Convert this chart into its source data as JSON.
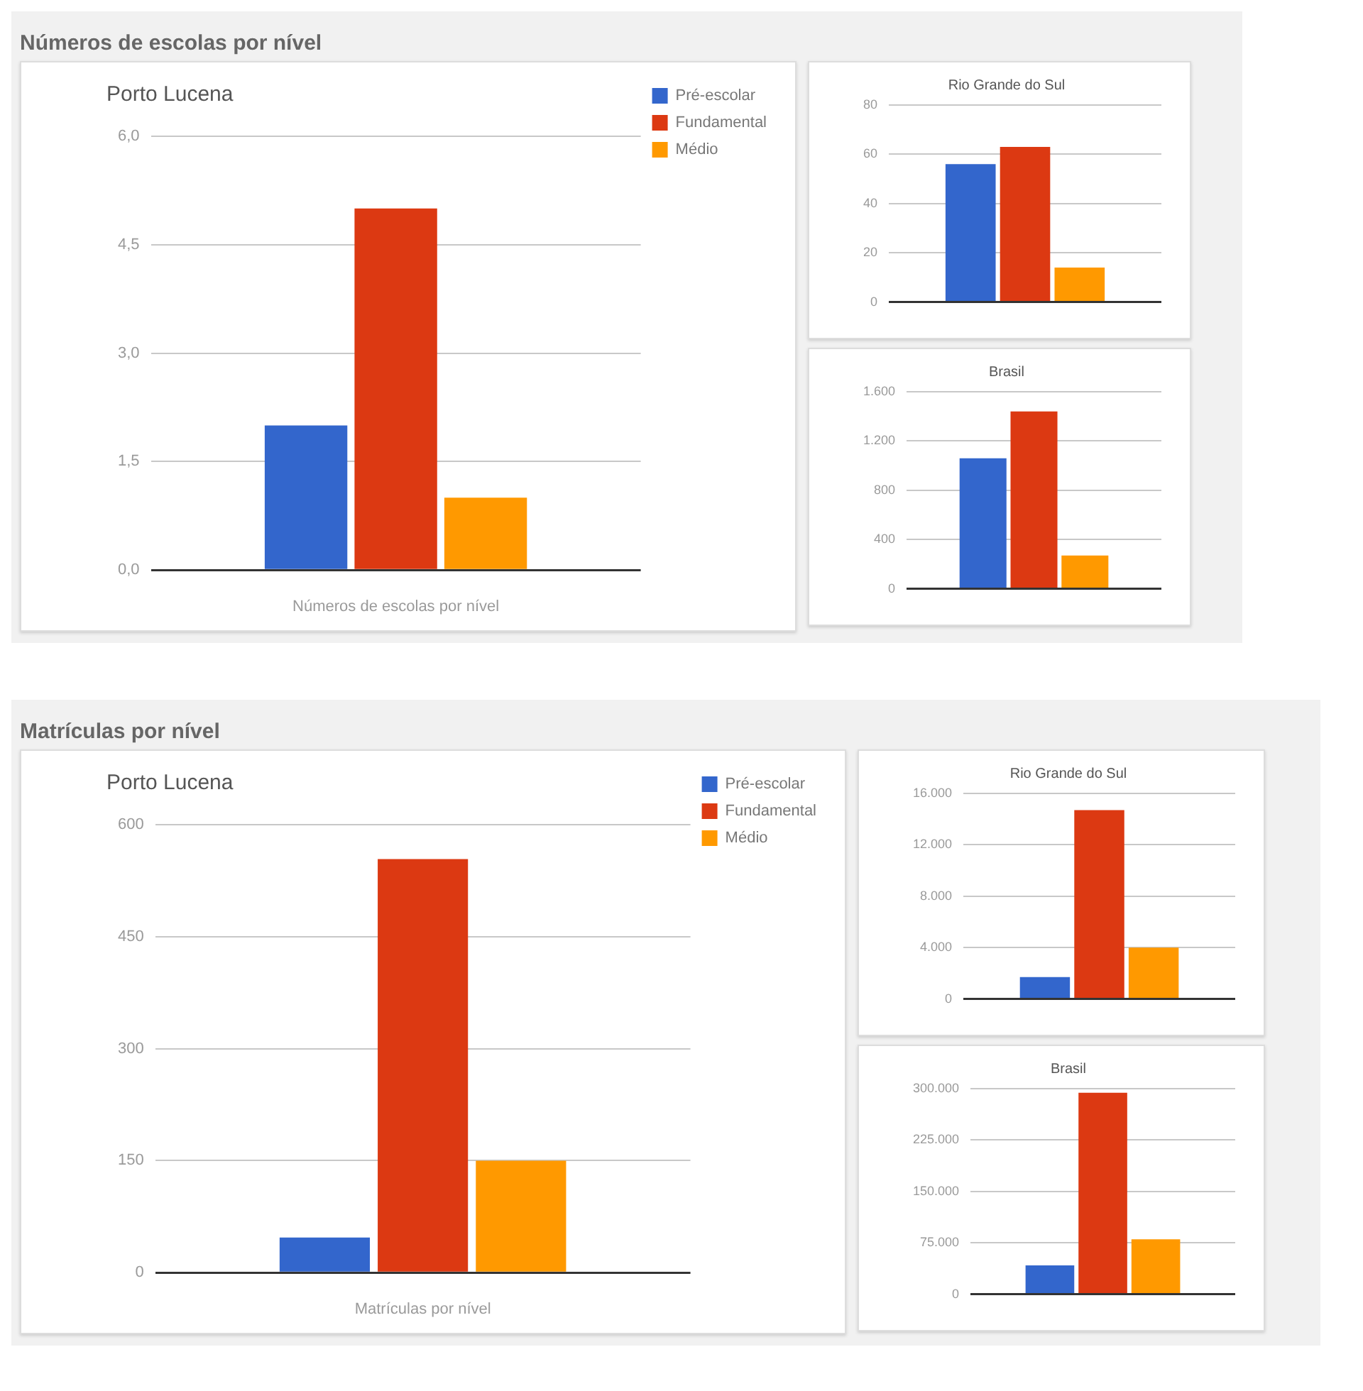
{
  "chart_data": [
    {
      "type": "bar",
      "title": "Números de escolas por nível",
      "subtitle": "Porto Lucena",
      "xlabel": "Números de escolas por nível",
      "categories": [
        null
      ],
      "series": [
        {
          "name": "Pré-escolar",
          "color": "#3366cc",
          "values": [
            2
          ]
        },
        {
          "name": "Fundamental",
          "color": "#dc3912",
          "values": [
            5
          ]
        },
        {
          "name": "Médio",
          "color": "#ff9900",
          "values": [
            1
          ]
        }
      ],
      "ylim": [
        0,
        6
      ],
      "yticks": [
        {
          "value": 0,
          "label": "0,0"
        },
        {
          "value": 1.5,
          "label": "1,5"
        },
        {
          "value": 3,
          "label": "3,0"
        },
        {
          "value": 4.5,
          "label": "4,5"
        },
        {
          "value": 6,
          "label": "6,0"
        }
      ],
      "grid": "y",
      "legend": "top right"
    },
    {
      "type": "bar",
      "title": "Rio Grande do Sul",
      "categories": [
        null
      ],
      "series": [
        {
          "color": "#3366cc",
          "values": [
            56
          ]
        },
        {
          "color": "#dc3912",
          "values": [
            63
          ]
        },
        {
          "color": "#ff9900",
          "values": [
            14
          ]
        }
      ],
      "ylim": [
        0,
        80
      ],
      "yticks": [
        0,
        20,
        40,
        60,
        80
      ],
      "grid": "y"
    },
    {
      "type": "bar",
      "title": "Brasil",
      "categories": [
        null
      ],
      "series": [
        {
          "color": "#3366cc",
          "values": [
            1060
          ]
        },
        {
          "color": "#dc3912",
          "values": [
            1440
          ]
        },
        {
          "color": "#ff9900",
          "values": [
            270
          ]
        }
      ],
      "ylim": [
        0,
        1600
      ],
      "yticks": [
        0,
        400,
        800,
        {
          "value": 1200,
          "label": "1.200"
        },
        {
          "value": 1600,
          "label": "1.600"
        }
      ],
      "grid": "y"
    },
    {
      "type": "bar",
      "title": "Matrículas por nível",
      "subtitle": "Porto Lucena",
      "xlabel": "Matrículas por nível",
      "categories": [
        null
      ],
      "series": [
        {
          "name": "Pré-escolar",
          "color": "#3366cc",
          "values": [
            47
          ]
        },
        {
          "name": "Fundamental",
          "color": "#dc3912",
          "values": [
            554
          ]
        },
        {
          "name": "Médio",
          "color": "#ff9900",
          "values": [
            150
          ]
        }
      ],
      "ylim": [
        0,
        600
      ],
      "yticks": [
        0,
        150,
        300,
        450,
        600
      ],
      "grid": "y",
      "legend": "top right"
    },
    {
      "type": "bar",
      "title": "Rio Grande do Sul",
      "categories": [
        null
      ],
      "series": [
        {
          "color": "#3366cc",
          "values": [
            1700
          ]
        },
        {
          "color": "#dc3912",
          "values": [
            14700
          ]
        },
        {
          "color": "#ff9900",
          "values": [
            4000
          ]
        }
      ],
      "ylim": [
        0,
        16000
      ],
      "yticks": [
        0,
        {
          "value": 4000,
          "label": "4.000"
        },
        {
          "value": 8000,
          "label": "8.000"
        },
        {
          "value": 12000,
          "label": "12.000"
        },
        {
          "value": 16000,
          "label": "16.000"
        }
      ],
      "grid": "y"
    },
    {
      "type": "bar",
      "title": "Brasil",
      "categories": [
        null
      ],
      "series": [
        {
          "color": "#3366cc",
          "values": [
            42000
          ]
        },
        {
          "color": "#dc3912",
          "values": [
            294000
          ]
        },
        {
          "color": "#ff9900",
          "values": [
            80000
          ]
        }
      ],
      "ylim": [
        0,
        300000
      ],
      "yticks": [
        0,
        {
          "value": 75000,
          "label": "75.000"
        },
        {
          "value": 150000,
          "label": "150.000"
        },
        {
          "value": 225000,
          "label": "225.000"
        },
        {
          "value": 300000,
          "label": "300.000"
        }
      ],
      "grid": "y"
    }
  ]
}
